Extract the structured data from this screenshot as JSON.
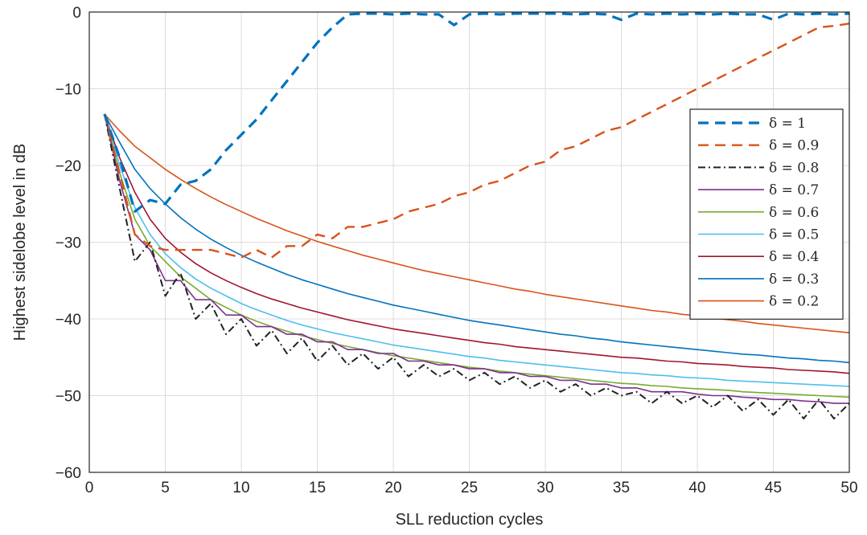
{
  "chart_data": {
    "type": "line",
    "xlabel": "SLL reduction cycles",
    "ylabel": "Highest sidelobe level in dB",
    "xlim": [
      0,
      50
    ],
    "ylim": [
      -60,
      0
    ],
    "xticks": [
      0,
      5,
      10,
      15,
      20,
      25,
      30,
      35,
      40,
      45,
      50
    ],
    "yticks": [
      0,
      -10,
      -20,
      -30,
      -40,
      -50,
      -60
    ],
    "xtick_labels": [
      "0",
      "5",
      "10",
      "15",
      "20",
      "25",
      "30",
      "35",
      "40",
      "45",
      "50"
    ],
    "ytick_labels": [
      "0",
      "−10",
      "−20",
      "−30",
      "−40",
      "−50",
      "−60"
    ],
    "grid": true,
    "legend_position": "right, upper-middle",
    "series": [
      {
        "name": "δ = 1",
        "color": "#0072BD",
        "dash": "dashed",
        "width": 3.2,
        "x": [
          1,
          2,
          3,
          4,
          5,
          6,
          7,
          8,
          9,
          10,
          11,
          12,
          13,
          14,
          15,
          16,
          17,
          18,
          19,
          20,
          21,
          22,
          23,
          24,
          25,
          26,
          27,
          28,
          29,
          30,
          31,
          32,
          33,
          34,
          35,
          36,
          37,
          38,
          39,
          40,
          41,
          42,
          43,
          44,
          45,
          46,
          47,
          48,
          49,
          50
        ],
        "y": [
          -13.3,
          -19,
          -26,
          -24.5,
          -25,
          -22.5,
          -22,
          -20.5,
          -18,
          -16,
          -14,
          -11.5,
          -9,
          -6.5,
          -4,
          -2,
          -0.3,
          -0.2,
          -0.2,
          -0.3,
          -0.2,
          -0.3,
          -0.3,
          -1.7,
          -0.3,
          -0.2,
          -0.3,
          -0.2,
          -0.2,
          -0.2,
          -0.2,
          -0.3,
          -0.2,
          -0.3,
          -1,
          -0.2,
          -0.3,
          -0.2,
          -0.3,
          -0.2,
          -0.3,
          -0.2,
          -0.3,
          -0.3,
          -1,
          -0.2,
          -0.3,
          -0.2,
          -0.3,
          -0.2
        ]
      },
      {
        "name": "δ = 0.9",
        "color": "#D95319",
        "dash": "dashed",
        "width": 2.4,
        "x": [
          1,
          2,
          3,
          4,
          5,
          6,
          7,
          8,
          9,
          10,
          11,
          12,
          13,
          14,
          15,
          16,
          17,
          18,
          19,
          20,
          21,
          22,
          23,
          24,
          25,
          26,
          27,
          28,
          29,
          30,
          31,
          32,
          33,
          34,
          35,
          36,
          37,
          38,
          39,
          40,
          41,
          42,
          43,
          44,
          45,
          46,
          47,
          48,
          49,
          50
        ],
        "y": [
          -13.3,
          -21,
          -29,
          -30.5,
          -31,
          -31,
          -31,
          -31,
          -31.5,
          -32,
          -31,
          -32,
          -30.5,
          -30.5,
          -29,
          -29.5,
          -28,
          -28,
          -27.5,
          -27,
          -26,
          -25.5,
          -25,
          -24,
          -23.5,
          -22.5,
          -22,
          -21,
          -20,
          -19.5,
          -18,
          -17.5,
          -16.5,
          -15.5,
          -15,
          -14,
          -13,
          -12,
          -11,
          -10,
          -9,
          -8,
          -7,
          -6,
          -5,
          -4,
          -3,
          -2,
          -1.8,
          -1.5
        ]
      },
      {
        "name": "δ = 0.8",
        "color": "#222222",
        "dash": "dashdot",
        "width": 2,
        "x": [
          1,
          2,
          3,
          4,
          5,
          6,
          7,
          8,
          9,
          10,
          11,
          12,
          13,
          14,
          15,
          16,
          17,
          18,
          19,
          20,
          21,
          22,
          23,
          24,
          25,
          26,
          27,
          28,
          29,
          30,
          31,
          32,
          33,
          34,
          35,
          36,
          37,
          38,
          39,
          40,
          41,
          42,
          43,
          44,
          45,
          46,
          47,
          48,
          49,
          50
        ],
        "y": [
          -13.3,
          -23,
          -32.5,
          -30,
          -37,
          -34,
          -40,
          -38,
          -42,
          -40,
          -43.5,
          -41.5,
          -44.5,
          -42.5,
          -45.5,
          -43.5,
          -46,
          -44.5,
          -46.5,
          -45,
          -47.5,
          -46,
          -47.5,
          -46.5,
          -48,
          -47,
          -48.5,
          -47.5,
          -49,
          -48,
          -49.5,
          -48.5,
          -50,
          -49,
          -50,
          -49.5,
          -51,
          -49.5,
          -51,
          -50,
          -51.5,
          -50,
          -52,
          -50.5,
          -52.5,
          -50.5,
          -53,
          -50.5,
          -53,
          -51
        ]
      },
      {
        "name": "δ = 0.7",
        "color": "#7E2F8E",
        "dash": "solid",
        "width": 1.6,
        "x": [
          1,
          2,
          3,
          4,
          5,
          6,
          7,
          8,
          9,
          10,
          11,
          12,
          13,
          14,
          15,
          16,
          17,
          18,
          19,
          20,
          21,
          22,
          23,
          24,
          25,
          26,
          27,
          28,
          29,
          30,
          31,
          32,
          33,
          34,
          35,
          36,
          37,
          38,
          39,
          40,
          41,
          42,
          43,
          44,
          45,
          46,
          47,
          48,
          49,
          50
        ],
        "y": [
          -13.3,
          -22,
          -29,
          -31,
          -35,
          -35,
          -37.5,
          -37.5,
          -39.5,
          -39.5,
          -41,
          -41,
          -42,
          -42,
          -43,
          -43,
          -44,
          -44,
          -44.5,
          -44.5,
          -45.5,
          -45.5,
          -46,
          -46,
          -46.5,
          -46.5,
          -47,
          -47,
          -47.5,
          -47.5,
          -48,
          -48,
          -48.5,
          -48.5,
          -49,
          -49,
          -49.5,
          -49.5,
          -49.5,
          -49.8,
          -50,
          -50,
          -50.2,
          -50.3,
          -50.5,
          -50.5,
          -50.7,
          -50.8,
          -51,
          -51
        ]
      },
      {
        "name": "δ = 0.6",
        "color": "#77AC30",
        "dash": "solid",
        "width": 1.6,
        "x": [
          1,
          2,
          3,
          4,
          5,
          6,
          7,
          8,
          9,
          10,
          11,
          12,
          13,
          14,
          15,
          16,
          17,
          18,
          19,
          20,
          21,
          22,
          23,
          24,
          25,
          26,
          27,
          28,
          29,
          30,
          31,
          32,
          33,
          34,
          35,
          36,
          37,
          38,
          39,
          40,
          41,
          42,
          43,
          44,
          45,
          46,
          47,
          48,
          49,
          50
        ],
        "y": [
          -13.3,
          -21,
          -27,
          -30.5,
          -32.5,
          -34.5,
          -36,
          -37.5,
          -38.5,
          -39.5,
          -40.3,
          -41,
          -41.6,
          -42.2,
          -42.7,
          -43.2,
          -43.6,
          -44,
          -44.4,
          -44.8,
          -45.1,
          -45.4,
          -45.7,
          -46,
          -46.3,
          -46.5,
          -46.8,
          -47,
          -47.2,
          -47.4,
          -47.6,
          -47.8,
          -48,
          -48.2,
          -48.4,
          -48.5,
          -48.7,
          -48.8,
          -49,
          -49.1,
          -49.2,
          -49.3,
          -49.5,
          -49.6,
          -49.7,
          -49.8,
          -49.9,
          -50,
          -50.1,
          -50.2
        ]
      },
      {
        "name": "δ = 0.5",
        "color": "#4DBEEE",
        "dash": "solid",
        "width": 1.6,
        "x": [
          1,
          2,
          3,
          4,
          5,
          6,
          7,
          8,
          9,
          10,
          11,
          12,
          13,
          14,
          15,
          16,
          17,
          18,
          19,
          20,
          21,
          22,
          23,
          24,
          25,
          26,
          27,
          28,
          29,
          30,
          31,
          32,
          33,
          34,
          35,
          36,
          37,
          38,
          39,
          40,
          41,
          42,
          43,
          44,
          45,
          46,
          47,
          48,
          49,
          50
        ],
        "y": [
          -13.3,
          -20,
          -25.5,
          -29,
          -31.5,
          -33.3,
          -34.8,
          -36,
          -37,
          -38,
          -38.8,
          -39.5,
          -40.2,
          -40.8,
          -41.3,
          -41.8,
          -42.2,
          -42.6,
          -43,
          -43.4,
          -43.7,
          -44,
          -44.3,
          -44.6,
          -44.9,
          -45.1,
          -45.4,
          -45.6,
          -45.8,
          -46,
          -46.2,
          -46.4,
          -46.6,
          -46.8,
          -47,
          -47.1,
          -47.3,
          -47.4,
          -47.6,
          -47.7,
          -47.8,
          -48,
          -48.1,
          -48.2,
          -48.3,
          -48.4,
          -48.5,
          -48.6,
          -48.7,
          -48.8
        ]
      },
      {
        "name": "δ = 0.4",
        "color": "#A2142F",
        "dash": "solid",
        "width": 1.6,
        "x": [
          1,
          2,
          3,
          4,
          5,
          6,
          7,
          8,
          9,
          10,
          11,
          12,
          13,
          14,
          15,
          16,
          17,
          18,
          19,
          20,
          21,
          22,
          23,
          24,
          25,
          26,
          27,
          28,
          29,
          30,
          31,
          32,
          33,
          34,
          35,
          36,
          37,
          38,
          39,
          40,
          41,
          42,
          43,
          44,
          45,
          46,
          47,
          48,
          49,
          50
        ],
        "y": [
          -13.3,
          -19,
          -23.5,
          -27,
          -29.5,
          -31.3,
          -32.8,
          -34,
          -35,
          -35.9,
          -36.7,
          -37.4,
          -38,
          -38.6,
          -39.1,
          -39.6,
          -40.1,
          -40.5,
          -40.9,
          -41.3,
          -41.6,
          -41.9,
          -42.2,
          -42.5,
          -42.8,
          -43.1,
          -43.3,
          -43.6,
          -43.8,
          -44,
          -44.2,
          -44.4,
          -44.6,
          -44.8,
          -45,
          -45.1,
          -45.3,
          -45.5,
          -45.6,
          -45.8,
          -45.9,
          -46,
          -46.2,
          -46.3,
          -46.4,
          -46.6,
          -46.7,
          -46.8,
          -46.9,
          -47.1
        ]
      },
      {
        "name": "δ = 0.3",
        "color": "#0072BD",
        "dash": "solid",
        "width": 1.6,
        "x": [
          1,
          2,
          3,
          4,
          5,
          6,
          7,
          8,
          9,
          10,
          11,
          12,
          13,
          14,
          15,
          16,
          17,
          18,
          19,
          20,
          21,
          22,
          23,
          24,
          25,
          26,
          27,
          28,
          29,
          30,
          31,
          32,
          33,
          34,
          35,
          36,
          37,
          38,
          39,
          40,
          41,
          42,
          43,
          44,
          45,
          46,
          47,
          48,
          49,
          50
        ],
        "y": [
          -13.3,
          -17,
          -20.5,
          -23,
          -25,
          -26.8,
          -28.3,
          -29.6,
          -30.7,
          -31.7,
          -32.6,
          -33.4,
          -34.2,
          -34.9,
          -35.5,
          -36.1,
          -36.7,
          -37.2,
          -37.7,
          -38.2,
          -38.6,
          -39,
          -39.4,
          -39.8,
          -40.2,
          -40.5,
          -40.8,
          -41.1,
          -41.4,
          -41.7,
          -42,
          -42.2,
          -42.5,
          -42.7,
          -43,
          -43.2,
          -43.4,
          -43.6,
          -43.8,
          -44,
          -44.2,
          -44.4,
          -44.6,
          -44.7,
          -44.9,
          -45.1,
          -45.2,
          -45.4,
          -45.5,
          -45.7
        ]
      },
      {
        "name": "δ = 0.2",
        "color": "#D95319",
        "dash": "solid",
        "width": 1.6,
        "x": [
          1,
          2,
          3,
          4,
          5,
          6,
          7,
          8,
          9,
          10,
          11,
          12,
          13,
          14,
          15,
          16,
          17,
          18,
          19,
          20,
          21,
          22,
          23,
          24,
          25,
          26,
          27,
          28,
          29,
          30,
          31,
          32,
          33,
          34,
          35,
          36,
          37,
          38,
          39,
          40,
          41,
          42,
          43,
          44,
          45,
          46,
          47,
          48,
          49,
          50
        ],
        "y": [
          -13.3,
          -15.5,
          -17.5,
          -19,
          -20.5,
          -21.8,
          -23,
          -24.1,
          -25.1,
          -26,
          -26.9,
          -27.7,
          -28.5,
          -29.2,
          -29.9,
          -30.5,
          -31.1,
          -31.7,
          -32.2,
          -32.7,
          -33.2,
          -33.7,
          -34.1,
          -34.5,
          -34.9,
          -35.3,
          -35.7,
          -36.1,
          -36.4,
          -36.8,
          -37.1,
          -37.4,
          -37.7,
          -38,
          -38.3,
          -38.6,
          -38.9,
          -39.1,
          -39.4,
          -39.6,
          -39.9,
          -40.1,
          -40.3,
          -40.6,
          -40.8,
          -41,
          -41.2,
          -41.4,
          -41.6,
          -41.8
        ]
      }
    ]
  }
}
